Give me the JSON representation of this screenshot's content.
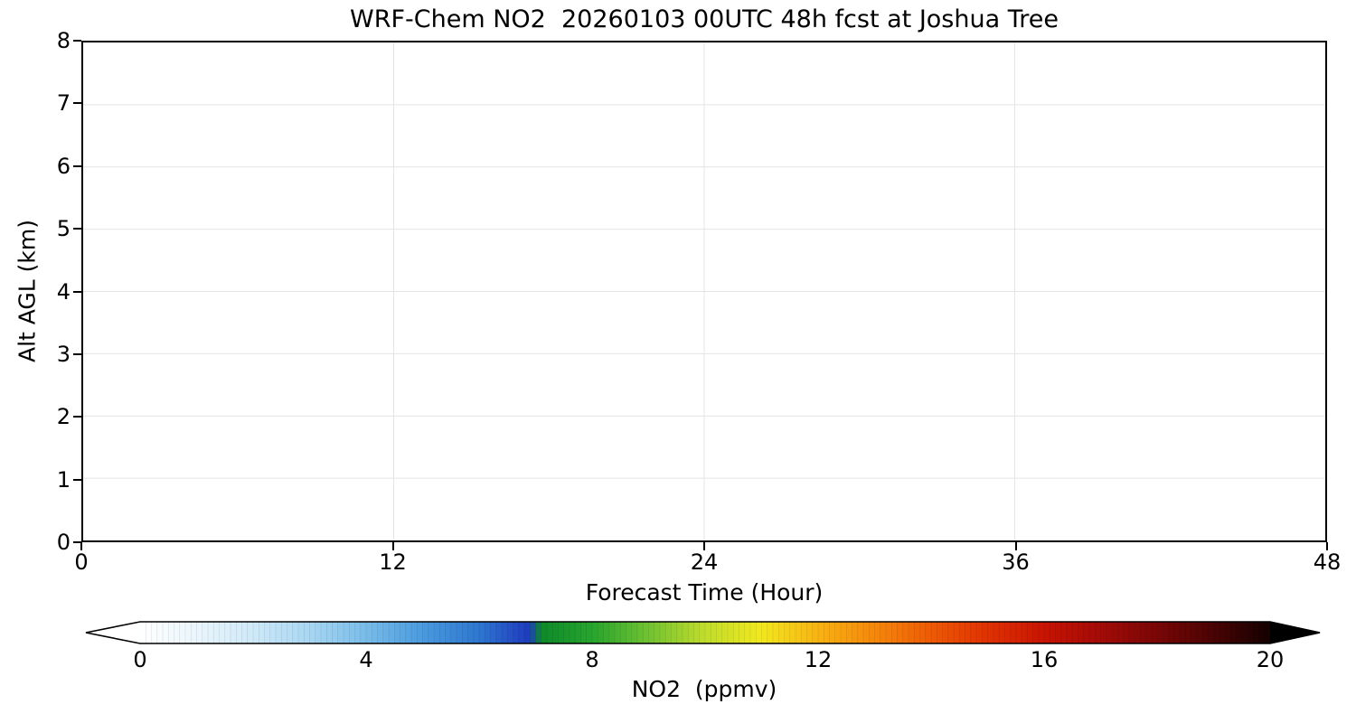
{
  "chart_data": {
    "type": "heatmap",
    "title": "WRF-Chem NO2  20260103 00UTC 48h fcst at Joshua Tree",
    "xlabel": "Forecast Time (Hour)",
    "ylabel": "Alt AGL (km)",
    "xlim": [
      0,
      48
    ],
    "ylim": [
      0,
      8
    ],
    "x_ticks": [
      0,
      12,
      24,
      36,
      48
    ],
    "y_ticks": [
      0,
      1,
      2,
      3,
      4,
      5,
      6,
      7,
      8
    ],
    "grid": true,
    "grid_color": "#e4e4e4",
    "values": [],
    "note": "cross-section plot area is blank white; no NO2 field values are visibly rendered",
    "colorbar": {
      "label": "NO2  (ppmv)",
      "ticks": [
        0,
        4,
        8,
        12,
        16,
        20
      ],
      "range": [
        0,
        20
      ],
      "extend": "both",
      "under_color": "#ffffff",
      "over_color": "#000000",
      "stops": [
        {
          "p": 0.0,
          "c": "#ffffff"
        },
        {
          "p": 0.05,
          "c": "#eaf5fc"
        },
        {
          "p": 0.1,
          "c": "#cfe9f8"
        },
        {
          "p": 0.15,
          "c": "#a8d6f2"
        },
        {
          "p": 0.2,
          "c": "#79bce9"
        },
        {
          "p": 0.25,
          "c": "#4a9ade"
        },
        {
          "p": 0.3,
          "c": "#2e77d0"
        },
        {
          "p": 0.335,
          "c": "#2247c2"
        },
        {
          "p": 0.345,
          "c": "#1d3cbc"
        },
        {
          "p": 0.355,
          "c": "#0e8a2a"
        },
        {
          "p": 0.4,
          "c": "#27a42e"
        },
        {
          "p": 0.45,
          "c": "#71c232"
        },
        {
          "p": 0.5,
          "c": "#c0dc2c"
        },
        {
          "p": 0.55,
          "c": "#f2e81f"
        },
        {
          "p": 0.6,
          "c": "#f8b313"
        },
        {
          "p": 0.65,
          "c": "#f5870b"
        },
        {
          "p": 0.7,
          "c": "#ee5a05"
        },
        {
          "p": 0.75,
          "c": "#e03102"
        },
        {
          "p": 0.8,
          "c": "#c81302"
        },
        {
          "p": 0.85,
          "c": "#a30b07"
        },
        {
          "p": 0.9,
          "c": "#7a0606"
        },
        {
          "p": 0.95,
          "c": "#4a0303"
        },
        {
          "p": 1.0,
          "c": "#150101"
        }
      ]
    }
  }
}
